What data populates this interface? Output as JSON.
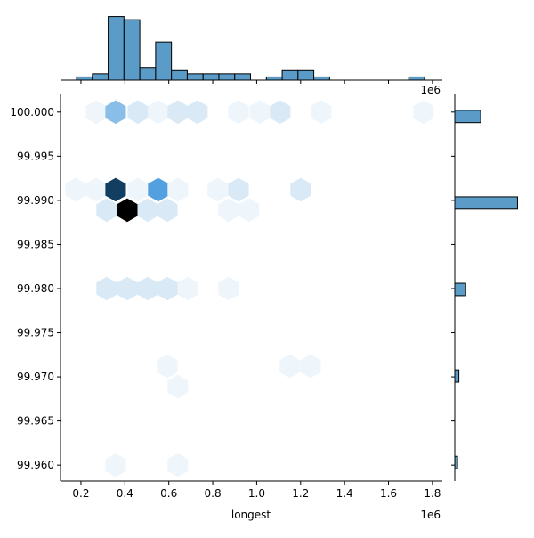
{
  "chart_data": {
    "type": "hexbin",
    "xlabel": "longest",
    "x_offset_label": "1e6",
    "color": "#5b9bc8",
    "xlim": [
      0.107,
      1.845
    ],
    "xticks": [
      0.2,
      0.4,
      0.6,
      0.8,
      {
        "value": 1,
        "label": "1.0"
      },
      1.2,
      1.4,
      1.6,
      1.8
    ],
    "ylim": [
      99.9582,
      100.0021
    ],
    "yticks": [
      {
        "value": 99.96,
        "label": "99.960"
      },
      {
        "value": 99.965,
        "label": "99.965"
      },
      {
        "value": 99.97,
        "label": "99.970"
      },
      {
        "value": 99.975,
        "label": "99.975"
      },
      {
        "value": 99.98,
        "label": "99.980"
      },
      {
        "value": 99.985,
        "label": "99.985"
      },
      {
        "value": 99.99,
        "label": "99.990"
      },
      {
        "value": 99.995,
        "label": "99.995"
      },
      {
        "value": 100,
        "label": "100.000"
      }
    ],
    "hexes": {
      "x": [
        0.269,
        0.358,
        0.459,
        0.552,
        0.641,
        0.73,
        0.917,
        1.014,
        1.107,
        1.293,
        1.759,
        0.176,
        0.269,
        0.358,
        0.459,
        0.552,
        0.641,
        0.823,
        0.917,
        1.2,
        0.317,
        0.411,
        0.504,
        0.593,
        0.872,
        0.965,
        0.317,
        0.411,
        0.504,
        0.593,
        0.686,
        0.872,
        0.593,
        1.151,
        1.245,
        0.641,
        0.358,
        0.641
      ],
      "y": [
        100,
        100,
        100,
        100,
        100,
        100,
        100,
        100,
        100,
        100,
        100,
        99.99121,
        99.99121,
        99.99121,
        99.99121,
        99.99121,
        99.99121,
        99.99121,
        99.99121,
        99.99121,
        99.98889,
        99.98889,
        99.98889,
        99.98889,
        99.98889,
        99.98889,
        99.98,
        99.98,
        99.98,
        99.98,
        99.98,
        99.98,
        99.97121,
        99.97121,
        99.97121,
        99.96889,
        99.96,
        99.96
      ],
      "counts": [
        1,
        5,
        2,
        1,
        2,
        2,
        1,
        1,
        2,
        1,
        1,
        1,
        1,
        11,
        1,
        7,
        1,
        1,
        2,
        2,
        2,
        14,
        2,
        2,
        1,
        1,
        2,
        2,
        2,
        2,
        1,
        1,
        1,
        1,
        1,
        1,
        1,
        1
      ]
    },
    "x_hist": {
      "bins": [
        0.18,
        0.252,
        0.324,
        0.396,
        0.468,
        0.54,
        0.612,
        0.684,
        0.756,
        0.828,
        0.9,
        0.972,
        1.044,
        1.116,
        1.188,
        1.26,
        1.332,
        1.404,
        1.476,
        1.548,
        1.62,
        1.692,
        1.764
      ],
      "counts": [
        1,
        2,
        20,
        19,
        4,
        12,
        3,
        2,
        2,
        2,
        2,
        0,
        1,
        3,
        3,
        1,
        0,
        0,
        0,
        0,
        0,
        1
      ],
      "ylim": [
        0,
        21
      ]
    },
    "y_hist": {
      "bins": [
        99.9596,
        99.961,
        99.9624,
        99.9638,
        99.9652,
        99.9666,
        99.968,
        99.9694,
        99.9708,
        99.9722,
        99.9736,
        99.975,
        99.9764,
        99.9778,
        99.9792,
        99.9806,
        99.982,
        99.9834,
        99.9848,
        99.9862,
        99.9876,
        99.989,
        99.9904,
        99.9918,
        99.9932,
        99.9946,
        99.996,
        99.9974,
        99.9988,
        100.0002
      ],
      "counts": [
        2,
        0,
        0,
        0,
        0,
        0,
        0,
        3,
        0,
        0,
        0,
        0,
        0,
        0,
        8,
        0,
        0,
        0,
        0,
        0,
        0,
        46,
        0,
        0,
        0,
        0,
        0,
        0,
        19
      ],
      "xlim": [
        0,
        48.3
      ]
    }
  }
}
